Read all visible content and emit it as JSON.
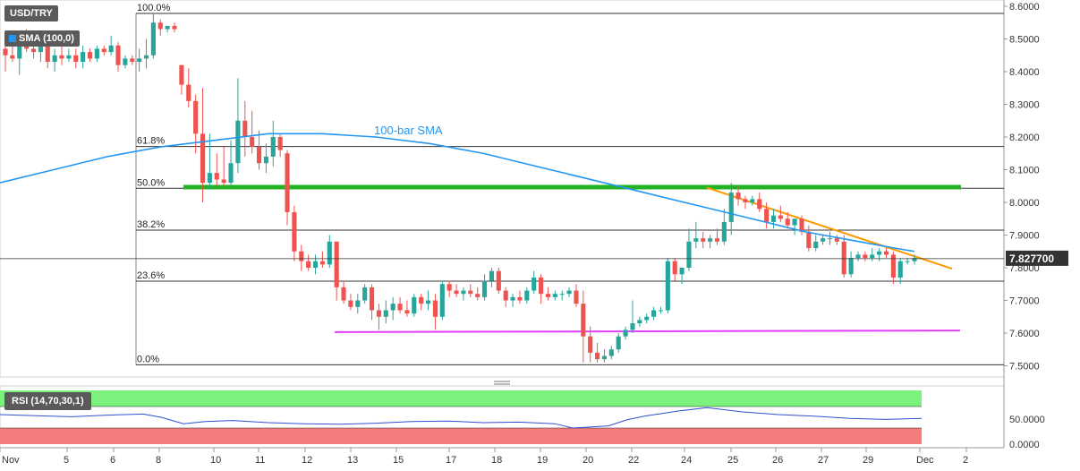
{
  "chart_data": {
    "type": "candlestick",
    "symbol": "USD/TRY",
    "indicator_label": "SMA (100,0)",
    "sma_annotation": "100-bar SMA",
    "rsi_label": "RSI (14,70,30,1)",
    "last_price_label": "7.827700",
    "y_ticks": [
      "8.6000",
      "8.5000",
      "8.4000",
      "8.3000",
      "8.2000",
      "8.1000",
      "8.0000",
      "7.9000",
      "7.8000",
      "7.7000",
      "7.6000",
      "7.5000"
    ],
    "y_tick_values": [
      8.6,
      8.5,
      8.4,
      8.3,
      8.2,
      8.1,
      8.0,
      7.9,
      7.8,
      7.7,
      7.6,
      7.5
    ],
    "ylim": [
      7.47,
      8.61
    ],
    "x_ticks": [
      "Nov",
      "5",
      "6",
      "8",
      "10",
      "11",
      "12",
      "13",
      "15",
      "17",
      "18",
      "19",
      "20",
      "22",
      "24",
      "25",
      "26",
      "27",
      "29",
      "Dec",
      "2"
    ],
    "fibonacci": [
      {
        "label": "100.0%",
        "value": 8.578
      },
      {
        "label": "61.8%",
        "value": 8.171
      },
      {
        "label": "50.0%",
        "value": 8.043
      },
      {
        "label": "38.2%",
        "value": 7.915
      },
      {
        "label": "23.6%",
        "value": 7.759
      },
      {
        "label": "0.0%",
        "value": 7.503
      }
    ],
    "last_price": 7.8277,
    "support_zone_green": 8.048,
    "support_line_magenta": [
      7.603,
      7.608
    ],
    "resistance_trendline_orange": [
      8.045,
      7.797
    ],
    "rsi_ticks": [
      "50.0000",
      "0.0000"
    ],
    "rsi_tick_values": [
      50,
      0
    ],
    "rsi_overbought": 70,
    "rsi_oversold": 30,
    "colors": {
      "up": "#26a69a",
      "down": "#ef5350",
      "sma": "#2196f3",
      "trendline": "#ff9800",
      "green_zone": "#22b322",
      "magenta_line": "#e040fb",
      "rsi_line": "#3050d0",
      "rsi_overbought_fill": "#7cf27c",
      "rsi_oversold_fill": "#f47c7c"
    }
  }
}
